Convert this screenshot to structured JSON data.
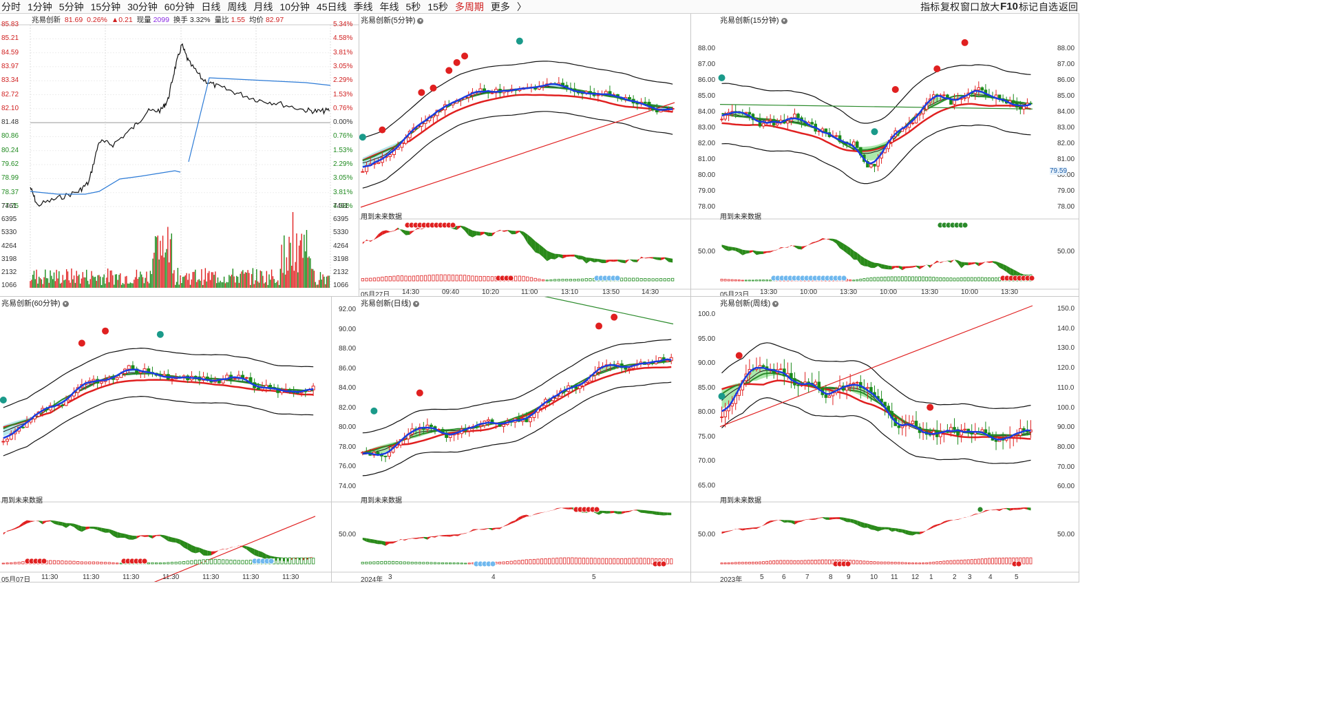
{
  "periods": [
    {
      "label": "分时",
      "active": false
    },
    {
      "label": "1分钟",
      "active": false
    },
    {
      "label": "5分钟",
      "active": false
    },
    {
      "label": "15分钟",
      "active": false
    },
    {
      "label": "30分钟",
      "active": false
    },
    {
      "label": "60分钟",
      "active": false
    },
    {
      "label": "日线",
      "active": false
    },
    {
      "label": "周线",
      "active": false
    },
    {
      "label": "月线",
      "active": false
    },
    {
      "label": "10分钟",
      "active": false
    },
    {
      "label": "45日线",
      "active": false
    },
    {
      "label": "季线",
      "active": false
    },
    {
      "label": "年线",
      "active": false
    },
    {
      "label": "5秒",
      "active": false
    },
    {
      "label": "15秒",
      "active": false
    },
    {
      "label": "多周期",
      "active": true
    },
    {
      "label": "更多",
      "active": false
    },
    {
      "label": "〉",
      "active": false
    }
  ],
  "tools": [
    "指标",
    "复权",
    "窗口",
    "放大",
    "F10",
    "标记",
    "自选",
    "返回"
  ],
  "intraday": {
    "title": "兆易创新",
    "price": "81.69",
    "pct": "0.26%",
    "change": "▲0.21",
    "vol_label": "现量",
    "vol": "2099",
    "turn_label": "换手",
    "turn": "3.32%",
    "ratio_label": "量比",
    "ratio": "1.55",
    "avg_label": "均价",
    "avg": "82.97",
    "left_axis": [
      "85.83",
      "85.21",
      "84.59",
      "83.97",
      "83.34",
      "82.72",
      "82.10",
      "81.48",
      "80.86",
      "80.24",
      "79.62",
      "78.99",
      "78.37",
      "77.75"
    ],
    "right_axis": [
      "5.34%",
      "4.58%",
      "3.81%",
      "3.05%",
      "2.29%",
      "1.53%",
      "0.76%",
      "0.00%",
      "0.76%",
      "1.53%",
      "2.29%",
      "3.05%",
      "3.81%",
      "4.58%"
    ],
    "vol_axis": [
      "7461",
      "6395",
      "5330",
      "4264",
      "3198",
      "2132",
      "1066"
    ]
  },
  "p5": {
    "title": "兆易创新(5分钟)",
    "sub": "用到未来数据",
    "xlabels": [
      "05月27日",
      "14:30",
      "09:40",
      "10:20",
      "11:00",
      "13:10",
      "13:50",
      "14:30"
    ]
  },
  "p15": {
    "title": "兆易创新(15分钟)",
    "sub": "用到未来数据",
    "yaxis": [
      "88.00",
      "87.00",
      "86.00",
      "85.00",
      "84.00",
      "83.00",
      "82.00",
      "81.00",
      "80.00",
      "79.00",
      "78.00"
    ],
    "price_tag": "79.59",
    "osc_label": "50.00",
    "xlabels": [
      "05月23日",
      "13:30",
      "10:00",
      "13:30",
      "10:00",
      "13:30",
      "10:00",
      "13:30"
    ]
  },
  "p60": {
    "title": "兆易创新(60分钟)",
    "sub": "用到未来数据",
    "xlabels": [
      "05月07日",
      "11:30",
      "11:30",
      "11:30",
      "11:30",
      "11:30",
      "11:30",
      "11:30"
    ]
  },
  "pday": {
    "title": "兆易创新(日线)",
    "sub": "用到未来数据",
    "yaxis": [
      "92.00",
      "90.00",
      "88.00",
      "86.00",
      "84.00",
      "82.00",
      "80.00",
      "78.00",
      "76.00",
      "74.00"
    ],
    "osc_label": "50.00",
    "xlabels": [
      "2024年",
      "3",
      "4",
      "5"
    ]
  },
  "pweek": {
    "title": "兆易创新(周线)",
    "sub": "用到未来数据",
    "yaxis": [
      "100.0",
      "95.00",
      "90.00",
      "85.00",
      "80.00",
      "75.00",
      "70.00",
      "65.00"
    ],
    "right_axis": [
      "150.0",
      "140.0",
      "130.0",
      "120.0",
      "110.0",
      "100.0",
      "90.00",
      "80.00",
      "70.00",
      "60.00"
    ],
    "osc_label": "50.00",
    "osc_right": "50.00",
    "xlabels": [
      "2023年",
      "5",
      "6",
      "7",
      "8",
      "9",
      "10",
      "11",
      "12",
      "1",
      "2",
      "3",
      "4",
      "5"
    ]
  },
  "colors": {
    "up": "#e02020",
    "down": "#1a8a1a",
    "band": "#9ee0e4",
    "band_green": "#8fe08f",
    "blue": "#1a3ce0"
  }
}
